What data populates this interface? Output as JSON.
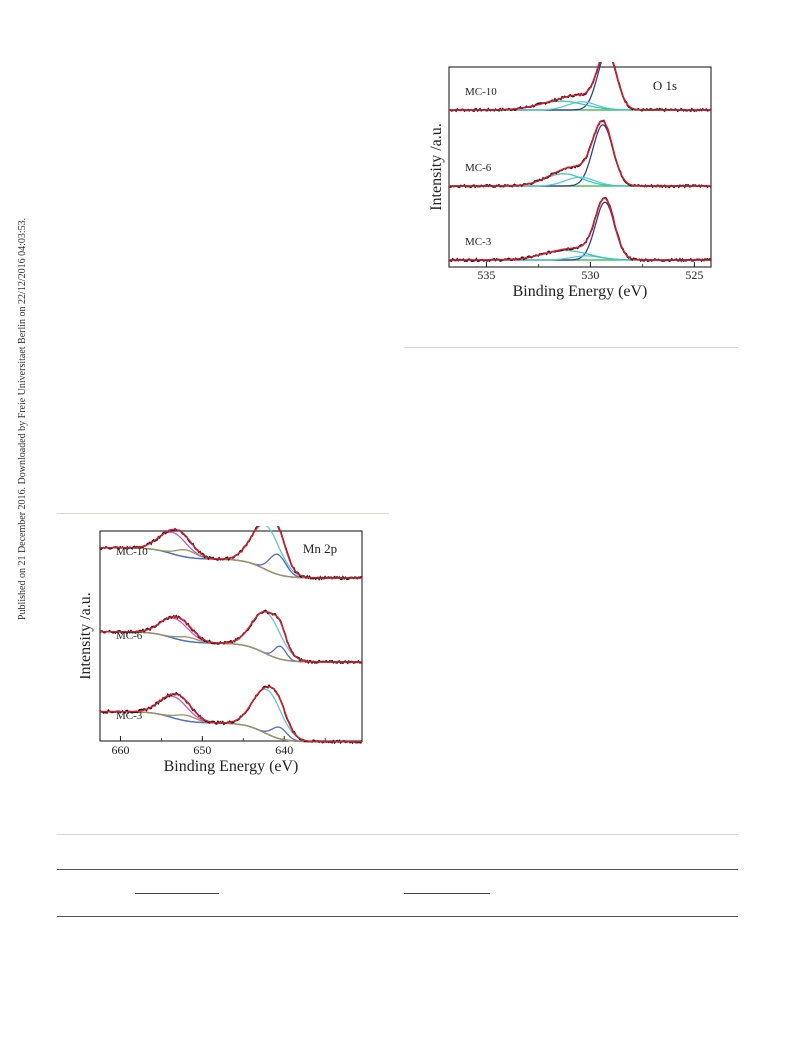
{
  "sidebar_note": "Published on 21 December 2016. Downloaded by Freie Universitaet Berlin on 22/12/2016 04:03:53.",
  "colors": {
    "experimental": "#111111",
    "envelope": "#e0192a",
    "baseline": "#9b9460",
    "green": "#4fc25a",
    "cyan": "#5cc9dd",
    "blue": "#4a6fd1",
    "teal": "#3cc8b8",
    "magenta": "#c85ac8",
    "darkblue": "#2f3f8f",
    "axis": "#222222"
  },
  "chart_data": [
    {
      "id": "o1s",
      "type": "line",
      "annotation": "O 1s",
      "xlabel": "Binding Energy (eV)",
      "ylabel": "Intensity /a.u.",
      "xlim": [
        536.8,
        524.2
      ],
      "x_reversed": true,
      "xticks": [
        535,
        530,
        525
      ],
      "grid": false,
      "series": [
        {
          "name": "MC-10",
          "baseline": 0.78,
          "peaks": [
            {
              "center": 529.2,
              "height": 0.85,
              "width": 0.45
            },
            {
              "center": 530.4,
              "height": 0.12,
              "width": 0.7
            },
            {
              "center": 531.4,
              "height": 0.13,
              "width": 1.1
            }
          ]
        },
        {
          "name": "MC-6",
          "baseline": 0.4,
          "peaks": [
            {
              "center": 529.4,
              "height": 0.9,
              "width": 0.48
            },
            {
              "center": 530.5,
              "height": 0.13,
              "width": 0.7
            },
            {
              "center": 531.3,
              "height": 0.18,
              "width": 0.9
            }
          ]
        },
        {
          "name": "MC-3",
          "baseline": 0.03,
          "peaks": [
            {
              "center": 529.3,
              "height": 0.85,
              "width": 0.46
            },
            {
              "center": 530.2,
              "height": 0.06,
              "width": 0.7
            },
            {
              "center": 531.2,
              "height": 0.14,
              "width": 1.1
            }
          ]
        }
      ]
    },
    {
      "id": "mn2p",
      "type": "line",
      "annotation": "Mn 2p",
      "xlabel": "Binding Energy (eV)",
      "ylabel": "Intensity /a.u.",
      "xlim": [
        662.5,
        630.5
      ],
      "x_reversed": true,
      "xticks": [
        660,
        650,
        640
      ],
      "grid": false,
      "series": [
        {
          "name": "MC-10",
          "baseline": 0.8,
          "peaks": [
            {
              "center": 642.3,
              "height": 0.62,
              "width": 1.7
            },
            {
              "center": 640.8,
              "height": 0.28,
              "width": 1.0
            },
            {
              "center": 653.6,
              "height": 0.3,
              "width": 1.7
            },
            {
              "center": 652.0,
              "height": 0.1,
              "width": 1.2
            }
          ]
        },
        {
          "name": "MC-6",
          "baseline": 0.4,
          "peaks": [
            {
              "center": 642.2,
              "height": 0.58,
              "width": 1.7
            },
            {
              "center": 640.5,
              "height": 0.18,
              "width": 0.7
            },
            {
              "center": 653.4,
              "height": 0.28,
              "width": 1.7
            },
            {
              "center": 651.8,
              "height": 0.06,
              "width": 1.2
            }
          ]
        },
        {
          "name": "MC-3",
          "baseline": 0.02,
          "peaks": [
            {
              "center": 642.1,
              "height": 0.62,
              "width": 1.7
            },
            {
              "center": 640.6,
              "height": 0.16,
              "width": 0.9
            },
            {
              "center": 653.5,
              "height": 0.3,
              "width": 1.7
            },
            {
              "center": 652.0,
              "height": 0.08,
              "width": 1.2
            }
          ]
        }
      ]
    }
  ]
}
